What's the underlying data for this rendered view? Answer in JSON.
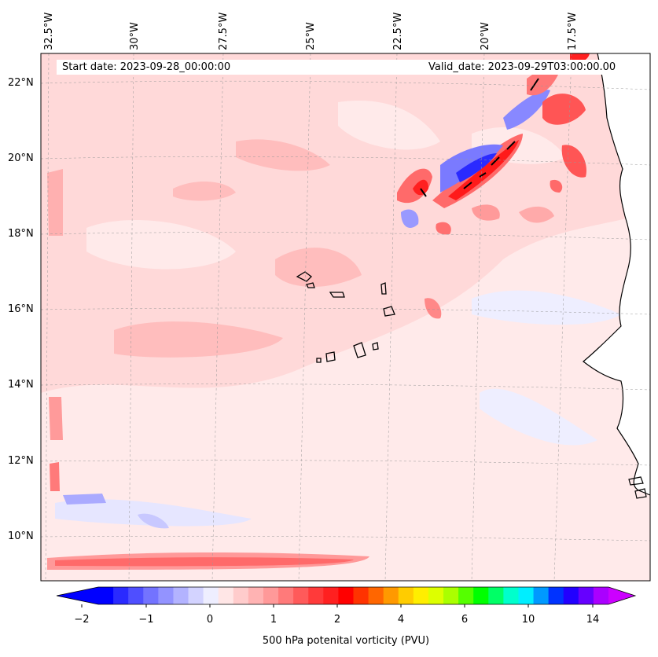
{
  "map": {
    "start_date_text": "Start date: 2023-09-28_00:00:00",
    "valid_date_text": "Valid_date: 2023-09-29T03:00:00.00",
    "longitude_labels": [
      "32.5°W",
      "30°W",
      "27.5°W",
      "25°W",
      "22.5°W",
      "20°W",
      "17.5°W"
    ],
    "latitude_labels": [
      "22°N",
      "20°N",
      "18°N",
      "16°N",
      "14°N",
      "12°N",
      "10°N"
    ],
    "colorbar": {
      "label": "500 hPa potenital vorticity (PVU)",
      "ticks": [
        "−2",
        "−1",
        "0",
        "1",
        "2",
        "4",
        "6",
        "10",
        "14"
      ],
      "colors": [
        "#0000ff",
        "#2a2aff",
        "#4f4fff",
        "#7373ff",
        "#9393ff",
        "#b3b3ff",
        "#d3d3ff",
        "#eeeeff",
        "#ffe6e6",
        "#ffcccc",
        "#ffb3b3",
        "#ff9999",
        "#ff7a7a",
        "#ff5a5a",
        "#ff3a3a",
        "#ff2020",
        "#ff0000",
        "#ff3300",
        "#ff6600",
        "#ff9900",
        "#ffcc00",
        "#ffee00",
        "#ddff00",
        "#aaff00",
        "#55ff00",
        "#00ff00",
        "#00ff66",
        "#00ffcc",
        "#00eeff",
        "#0099ff",
        "#0033ff",
        "#2200ff",
        "#6600ff",
        "#aa00ff"
      ],
      "extend_low_color": "#0000ff",
      "extend_high_color": "#cc00ff"
    },
    "colors": {
      "background_field": "#ffd9d9",
      "light_field": "#ffeaea",
      "medium_red": "#ffaaaa",
      "strong_red": "#ff2a2a",
      "light_blue": "#e6e6ff",
      "medium_blue": "#9999ff",
      "strong_blue": "#1a1aff",
      "coast": "#000000"
    }
  }
}
